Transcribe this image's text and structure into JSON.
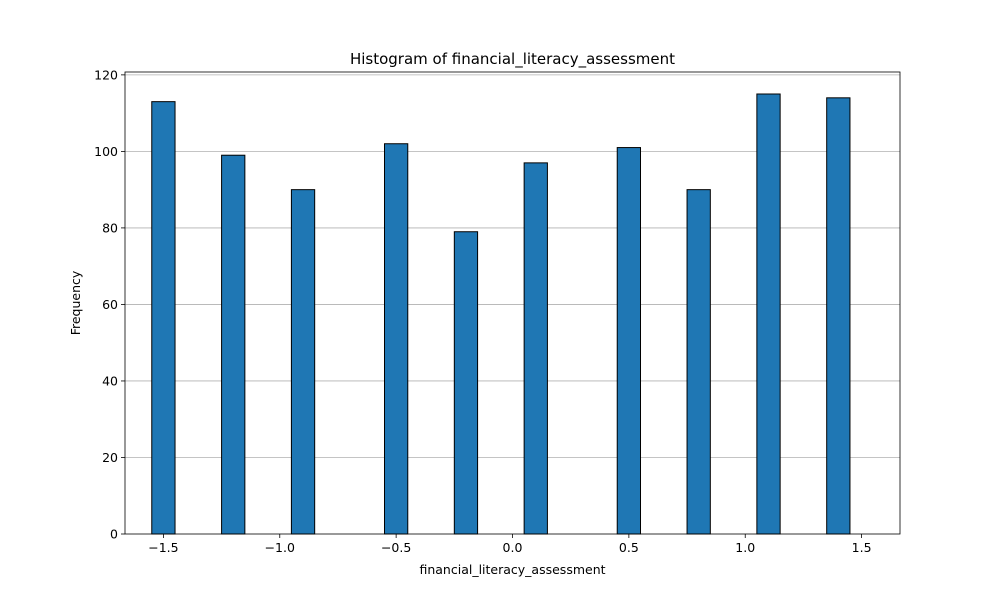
{
  "chart_data": {
    "type": "bar",
    "title": "Histogram of financial_literacy_assessment",
    "xlabel": "financial_literacy_assessment",
    "ylabel": "Frequency",
    "xlim": [
      -1.665,
      1.665
    ],
    "ylim": [
      0,
      120.75
    ],
    "grid": "y",
    "bar_color": "#1f77b4",
    "edge_color": "#000000",
    "bin_width": 0.1,
    "bins": [
      {
        "start": -1.55,
        "end": -1.45,
        "count": 113
      },
      {
        "start": -1.25,
        "end": -1.15,
        "count": 99
      },
      {
        "start": -0.95,
        "end": -0.85,
        "count": 90
      },
      {
        "start": -0.55,
        "end": -0.45,
        "count": 102
      },
      {
        "start": -0.25,
        "end": -0.15,
        "count": 79
      },
      {
        "start": 0.05,
        "end": 0.15,
        "count": 97
      },
      {
        "start": 0.45,
        "end": 0.55,
        "count": 101
      },
      {
        "start": 0.75,
        "end": 0.85,
        "count": 90
      },
      {
        "start": 1.05,
        "end": 1.15,
        "count": 115
      },
      {
        "start": 1.35,
        "end": 1.45,
        "count": 114
      }
    ],
    "x_ticks": [
      -1.5,
      -1.0,
      -0.5,
      0.0,
      0.5,
      1.0,
      1.5
    ],
    "x_tick_labels": [
      "−1.5",
      "−1.0",
      "−0.5",
      "0.0",
      "0.5",
      "1.0",
      "1.5"
    ],
    "y_ticks": [
      0,
      20,
      40,
      60,
      80,
      100,
      120
    ],
    "y_tick_labels": [
      "0",
      "20",
      "40",
      "60",
      "80",
      "100",
      "120"
    ]
  }
}
